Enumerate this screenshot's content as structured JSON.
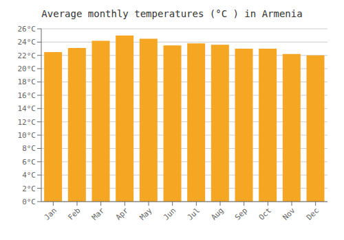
{
  "chart_data": {
    "type": "bar",
    "title": "Average monthly temperatures (°C ) in Armenia",
    "categories": [
      "Jan",
      "Feb",
      "Mar",
      "Apr",
      "May",
      "Jun",
      "Jul",
      "Aug",
      "Sep",
      "Oct",
      "Nov",
      "Dec"
    ],
    "values": [
      22.5,
      23.1,
      24.2,
      25.0,
      24.5,
      23.5,
      23.8,
      23.6,
      23.0,
      23.0,
      22.2,
      22.0
    ],
    "color": "#F5A623",
    "ylim": [
      0,
      26
    ],
    "yticks": [
      {
        "value": 0,
        "label": "0°C"
      },
      {
        "value": 2,
        "label": "2°C"
      },
      {
        "value": 4,
        "label": "4°C"
      },
      {
        "value": 6,
        "label": "6°C"
      },
      {
        "value": 8,
        "label": "8°C"
      },
      {
        "value": 10,
        "label": "10°C"
      },
      {
        "value": 12,
        "label": "12°C"
      },
      {
        "value": 14,
        "label": "14°C"
      },
      {
        "value": 16,
        "label": "16°C"
      },
      {
        "value": 18,
        "label": "18°C"
      },
      {
        "value": 20,
        "label": "20°C"
      },
      {
        "value": 22,
        "label": "22°C"
      },
      {
        "value": 24,
        "label": "24°C"
      },
      {
        "value": 26,
        "label": "26°C"
      }
    ],
    "grid": true
  }
}
